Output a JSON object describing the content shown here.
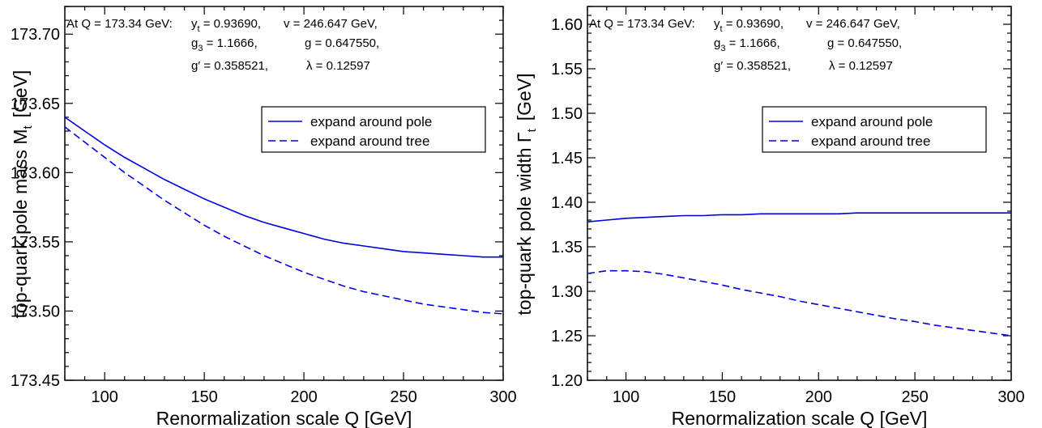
{
  "chart_data": [
    {
      "type": "line",
      "xlabel": "Renormalization scale Q  [GeV]",
      "ylabel": "top-quark pole mass  M",
      "ylabel_sub": "t",
      "ylabel_unit": "[GeV]",
      "xlim": [
        80,
        300
      ],
      "ylim": [
        173.45,
        173.72
      ],
      "xticks": [
        100,
        150,
        200,
        250,
        300
      ],
      "xtick_labels": [
        "100",
        "150",
        "200",
        "250",
        "300"
      ],
      "yticks": [
        173.45,
        173.5,
        173.55,
        173.6,
        173.65,
        173.7
      ],
      "ytick_labels": [
        "173.45",
        "173.50",
        "173.55",
        "173.60",
        "173.65",
        "173.70"
      ],
      "annotation": {
        "line1_prefix": "At Q = 173.34 GeV:",
        "yt": "y",
        "yt_sub": "t",
        "yt_val": " = 0.93690,",
        "v": "v = 246.647 GeV,",
        "g3": "g",
        "g3_sub": "3",
        "g3_val": " = 1.1666,",
        "g": "g = 0.647550,",
        "gp": "g′ = 0.358521,",
        "lam": "λ = 0.12597"
      },
      "legend": [
        {
          "label": "expand around pole",
          "style": "solid"
        },
        {
          "label": "expand around tree",
          "style": "dashed"
        }
      ],
      "series": [
        {
          "name": "expand around pole",
          "style": "solid",
          "x": [
            80,
            90,
            100,
            110,
            120,
            130,
            140,
            150,
            160,
            170,
            180,
            190,
            200,
            210,
            220,
            230,
            240,
            250,
            260,
            270,
            280,
            290,
            300
          ],
          "y": [
            173.64,
            173.63,
            173.62,
            173.611,
            173.603,
            173.595,
            173.588,
            173.581,
            173.575,
            173.569,
            173.564,
            173.56,
            173.556,
            173.552,
            173.549,
            173.547,
            173.545,
            173.543,
            173.542,
            173.541,
            173.54,
            173.539,
            173.539
          ]
        },
        {
          "name": "expand around tree",
          "style": "dashed",
          "x": [
            80,
            90,
            100,
            110,
            120,
            130,
            140,
            150,
            160,
            170,
            180,
            190,
            200,
            210,
            220,
            230,
            240,
            250,
            260,
            270,
            280,
            290,
            300
          ],
          "y": [
            173.633,
            173.622,
            173.611,
            173.6,
            173.59,
            173.58,
            173.571,
            173.562,
            173.554,
            173.547,
            173.54,
            173.534,
            173.528,
            173.523,
            173.518,
            173.514,
            173.511,
            173.508,
            173.505,
            173.503,
            173.501,
            173.499,
            173.498
          ]
        }
      ]
    },
    {
      "type": "line",
      "xlabel": "Renormalization scale Q  [GeV]",
      "ylabel": "top-quark pole width  Γ",
      "ylabel_sub": "t",
      "ylabel_unit": "[GeV]",
      "xlim": [
        80,
        300
      ],
      "ylim": [
        1.2,
        1.62
      ],
      "xticks": [
        100,
        150,
        200,
        250,
        300
      ],
      "xtick_labels": [
        "100",
        "150",
        "200",
        "250",
        "300"
      ],
      "yticks": [
        1.2,
        1.25,
        1.3,
        1.35,
        1.4,
        1.45,
        1.5,
        1.55,
        1.6
      ],
      "ytick_labels": [
        "1.20",
        "1.25",
        "1.30",
        "1.35",
        "1.40",
        "1.45",
        "1.50",
        "1.55",
        "1.60"
      ],
      "annotation": {
        "line1_prefix": "At Q = 173.34 GeV:",
        "yt": "y",
        "yt_sub": "t",
        "yt_val": " = 0.93690,",
        "v": "v = 246.647 GeV,",
        "g3": "g",
        "g3_sub": "3",
        "g3_val": " = 1.1666,",
        "g": "g = 0.647550,",
        "gp": "g′ = 0.358521,",
        "lam": "λ = 0.12597"
      },
      "legend": [
        {
          "label": "expand around pole",
          "style": "solid"
        },
        {
          "label": "expand around tree",
          "style": "dashed"
        }
      ],
      "series": [
        {
          "name": "expand around pole",
          "style": "solid",
          "x": [
            80,
            90,
            100,
            110,
            120,
            130,
            140,
            150,
            160,
            170,
            180,
            190,
            200,
            210,
            220,
            230,
            240,
            250,
            260,
            270,
            280,
            290,
            300
          ],
          "y": [
            1.378,
            1.38,
            1.382,
            1.383,
            1.384,
            1.385,
            1.385,
            1.386,
            1.386,
            1.387,
            1.387,
            1.387,
            1.387,
            1.387,
            1.388,
            1.388,
            1.388,
            1.388,
            1.388,
            1.388,
            1.388,
            1.388,
            1.388
          ]
        },
        {
          "name": "expand around tree",
          "style": "dashed",
          "x": [
            80,
            90,
            100,
            110,
            120,
            130,
            140,
            150,
            160,
            170,
            180,
            190,
            200,
            210,
            220,
            230,
            240,
            250,
            260,
            270,
            280,
            290,
            300
          ],
          "y": [
            1.32,
            1.323,
            1.323,
            1.322,
            1.319,
            1.315,
            1.311,
            1.307,
            1.302,
            1.298,
            1.294,
            1.289,
            1.285,
            1.281,
            1.277,
            1.273,
            1.269,
            1.266,
            1.262,
            1.259,
            1.256,
            1.253,
            1.25
          ]
        }
      ]
    }
  ],
  "colors": {
    "curve": "#0000dd",
    "axis": "#000000"
  }
}
